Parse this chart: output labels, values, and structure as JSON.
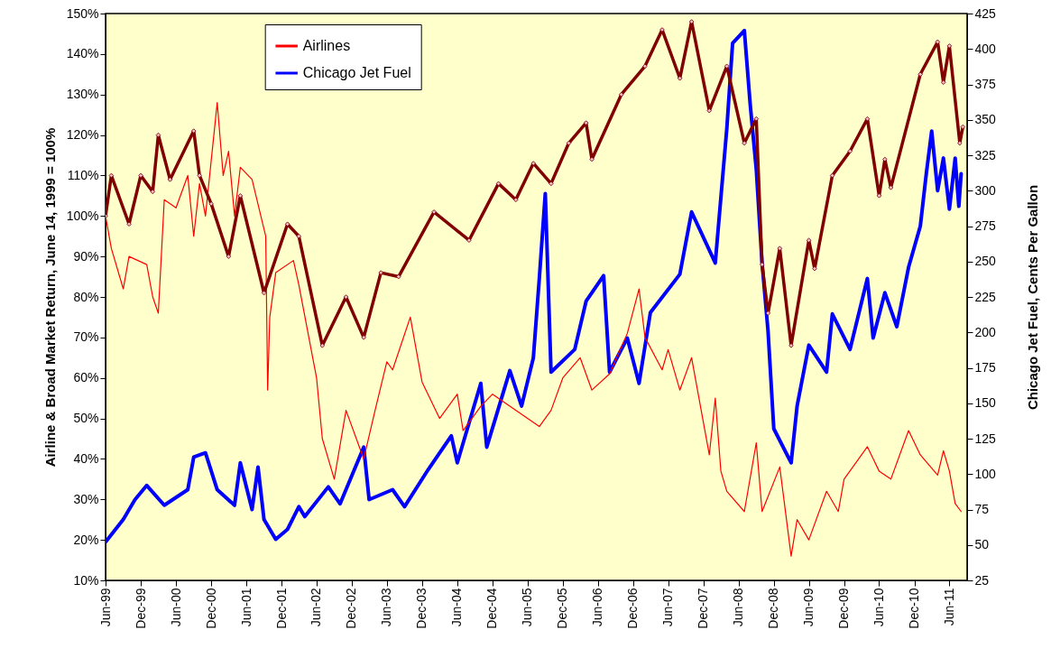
{
  "chart_data": {
    "type": "line",
    "ylabel": "Airline & Broad Market Return, June 14, 1999 = 100%",
    "y2label": "Chicago Jet Fuel, Cents Per Gallon",
    "legend": "top left",
    "grid": false,
    "line_style": "solid",
    "xlim": [
      "1999-06",
      "2011-09"
    ],
    "xticks": [
      {
        "value": "1999-06",
        "label": "Jun-99"
      },
      {
        "value": "1999-12",
        "label": "Dec-99"
      },
      {
        "value": "2000-06",
        "label": "Jun-00"
      },
      {
        "value": "2000-12",
        "label": "Dec-00"
      },
      {
        "value": "2001-06",
        "label": "Jun-01"
      },
      {
        "value": "2001-12",
        "label": "Dec-01"
      },
      {
        "value": "2002-06",
        "label": "Jun-02"
      },
      {
        "value": "2002-12",
        "label": "Dec-02"
      },
      {
        "value": "2003-06",
        "label": "Jun-03"
      },
      {
        "value": "2003-12",
        "label": "Dec-03"
      },
      {
        "value": "2004-06",
        "label": "Jun-04"
      },
      {
        "value": "2004-12",
        "label": "Dec-04"
      },
      {
        "value": "2005-06",
        "label": "Jun-05"
      },
      {
        "value": "2005-12",
        "label": "Dec-05"
      },
      {
        "value": "2006-06",
        "label": "Jun-06"
      },
      {
        "value": "2006-12",
        "label": "Dec-06"
      },
      {
        "value": "2007-06",
        "label": "Jun-07"
      },
      {
        "value": "2007-12",
        "label": "Dec-07"
      },
      {
        "value": "2008-06",
        "label": "Jun-08"
      },
      {
        "value": "2008-12",
        "label": "Dec-08"
      },
      {
        "value": "2009-06",
        "label": "Jun-09"
      },
      {
        "value": "2009-12",
        "label": "Dec-09"
      },
      {
        "value": "2010-06",
        "label": "Jun-10"
      },
      {
        "value": "2010-12",
        "label": "Dec-10"
      },
      {
        "value": "2011-06",
        "label": "Jun-11"
      }
    ],
    "ylim": [
      10,
      150
    ],
    "yticks": [
      {
        "value": 10,
        "label": "10%"
      },
      {
        "value": 20,
        "label": "20%"
      },
      {
        "value": 30,
        "label": "30%"
      },
      {
        "value": 40,
        "label": "40%"
      },
      {
        "value": 50,
        "label": "50%"
      },
      {
        "value": 60,
        "label": "60%"
      },
      {
        "value": 70,
        "label": "70%"
      },
      {
        "value": 80,
        "label": "80%"
      },
      {
        "value": 90,
        "label": "90%"
      },
      {
        "value": 100,
        "label": "100%"
      },
      {
        "value": 110,
        "label": "110%"
      },
      {
        "value": 120,
        "label": "120%"
      },
      {
        "value": 130,
        "label": "130%"
      },
      {
        "value": 140,
        "label": "140%"
      },
      {
        "value": 150,
        "label": "150%"
      }
    ],
    "y2lim": [
      25,
      425
    ],
    "y2ticks": [
      25,
      50,
      75,
      100,
      125,
      150,
      175,
      200,
      225,
      250,
      275,
      300,
      325,
      350,
      375,
      400,
      425
    ],
    "series": [
      {
        "name": "Airlines",
        "color": "#ff0000",
        "marker": "none",
        "x": [
          "1999-06",
          "1999-07",
          "1999-09",
          "1999-10",
          "2000-01",
          "2000-02",
          "2000-03",
          "2000-04",
          "2000-06",
          "2000-08",
          "2000-09",
          "2000-10",
          "2000-11",
          "2001-01",
          "2001-02",
          "2001-03",
          "2001-04",
          "2001-05",
          "2001-07",
          "2001-09-10",
          "2001-09-20",
          "2001-10",
          "2001-11",
          "2002-02",
          "2002-03",
          "2002-06",
          "2002-07",
          "2002-09",
          "2002-11",
          "2003-02",
          "2003-04",
          "2003-06",
          "2003-07",
          "2003-10",
          "2003-12",
          "2004-03",
          "2004-06",
          "2004-07",
          "2004-10",
          "2004-12",
          "2005-03",
          "2005-08",
          "2005-10",
          "2005-12",
          "2006-03",
          "2006-05",
          "2006-08",
          "2006-11",
          "2007-01",
          "2007-02",
          "2007-05",
          "2007-06",
          "2007-08",
          "2007-10",
          "2008-01",
          "2008-02",
          "2008-03",
          "2008-04",
          "2008-07",
          "2008-09",
          "2008-10",
          "2009-01",
          "2009-03",
          "2009-04",
          "2009-06",
          "2009-09",
          "2009-11",
          "2009-12",
          "2010-04",
          "2010-06",
          "2010-08",
          "2010-11",
          "2011-01",
          "2011-04",
          "2011-05",
          "2011-06",
          "2011-07",
          "2011-08"
        ],
        "values": [
          100,
          92,
          82,
          90,
          88,
          80,
          76,
          104,
          102,
          110,
          95,
          108,
          100,
          128,
          110,
          116,
          100,
          112,
          109,
          95,
          57,
          75,
          86,
          89,
          83,
          60,
          45,
          35,
          52,
          40,
          52,
          64,
          62,
          75,
          59,
          50,
          56,
          47,
          53,
          56,
          53,
          48,
          52,
          60,
          65,
          57,
          61,
          71,
          82,
          70,
          62,
          67,
          57,
          65,
          41,
          55,
          37,
          32,
          27,
          44,
          27,
          38,
          16,
          25,
          20,
          32,
          27,
          35,
          43,
          37,
          35,
          47,
          41,
          36,
          42,
          37,
          29,
          27
        ]
      },
      {
        "color": "#800000",
        "marker": "diamond",
        "x": [
          "1999-06",
          "1999-07",
          "1999-10",
          "1999-12",
          "2000-02",
          "2000-03",
          "2000-05",
          "2000-09",
          "2000-10",
          "2000-12",
          "2001-03",
          "2001-05",
          "2001-09",
          "2002-01",
          "2002-03",
          "2002-07",
          "2002-11",
          "2003-02",
          "2003-05",
          "2003-08",
          "2004-02",
          "2004-08",
          "2005-01",
          "2005-04",
          "2005-07",
          "2005-10",
          "2006-01",
          "2006-04",
          "2006-05",
          "2006-10",
          "2007-02",
          "2007-05",
          "2007-08",
          "2007-10",
          "2008-01",
          "2008-04",
          "2008-07",
          "2008-09",
          "2008-10",
          "2008-11",
          "2009-01",
          "2009-03",
          "2009-06",
          "2009-07",
          "2009-10",
          "2010-01",
          "2010-04",
          "2010-06",
          "2010-07",
          "2010-08",
          "2011-01",
          "2011-04",
          "2011-05",
          "2011-06",
          "2011-07-25",
          "2011-08-10"
        ],
        "values": [
          100,
          110,
          98,
          110,
          106,
          120,
          109,
          121,
          110,
          103,
          90,
          105,
          81,
          98,
          95,
          68,
          80,
          70,
          86,
          85,
          101,
          94,
          108,
          104,
          113,
          108,
          118,
          123,
          114,
          130,
          137,
          146,
          134,
          148,
          126,
          137,
          118,
          124,
          88,
          76,
          92,
          68,
          94,
          87,
          110,
          116,
          124,
          105,
          114,
          107,
          135,
          143,
          133,
          142,
          118,
          122
        ]
      },
      {
        "name": "Chicago Jet Fuel",
        "color": "#0000ff",
        "marker": "none",
        "axis": "y2",
        "x": [
          "1999-06",
          "1999-09",
          "1999-11",
          "2000-01",
          "2000-04",
          "2000-08",
          "2000-09",
          "2000-11",
          "2001-01",
          "2001-04",
          "2001-05",
          "2001-07",
          "2001-08",
          "2001-09",
          "2001-11",
          "2002-01",
          "2002-03",
          "2002-04",
          "2002-08",
          "2002-10",
          "2003-02",
          "2003-03",
          "2003-07",
          "2003-09",
          "2004-01",
          "2004-05",
          "2004-06",
          "2004-10",
          "2004-11",
          "2005-03",
          "2005-05",
          "2005-07",
          "2005-08",
          "2005-09",
          "2005-10",
          "2006-02",
          "2006-04",
          "2006-07",
          "2006-08",
          "2006-11",
          "2007-01",
          "2007-03",
          "2007-08",
          "2007-10",
          "2008-02",
          "2008-04",
          "2008-05",
          "2008-07",
          "2008-08",
          "2008-09",
          "2008-10",
          "2008-11",
          "2008-12",
          "2009-03",
          "2009-04",
          "2009-06",
          "2009-09",
          "2009-10",
          "2010-01",
          "2010-04",
          "2010-05",
          "2010-07",
          "2010-09",
          "2010-11",
          "2011-01",
          "2011-02",
          "2011-03",
          "2011-04",
          "2011-05",
          "2011-06",
          "2011-07",
          "2011-07-20",
          "2011-08"
        ],
        "values": [
          52,
          68,
          82,
          92,
          78,
          89,
          112,
          115,
          89,
          78,
          108,
          75,
          105,
          68,
          54,
          61,
          77,
          70,
          91,
          79,
          119,
          82,
          89,
          77,
          103,
          127,
          108,
          164,
          119,
          173,
          148,
          182,
          238,
          298,
          172,
          188,
          222,
          240,
          172,
          196,
          164,
          214,
          241,
          285,
          249,
          344,
          404,
          413,
          360,
          315,
          249,
          201,
          132,
          108,
          148,
          191,
          172,
          213,
          188,
          238,
          196,
          228,
          204,
          246,
          275,
          312,
          342,
          300,
          323,
          287,
          323,
          289,
          312
        ]
      }
    ]
  }
}
